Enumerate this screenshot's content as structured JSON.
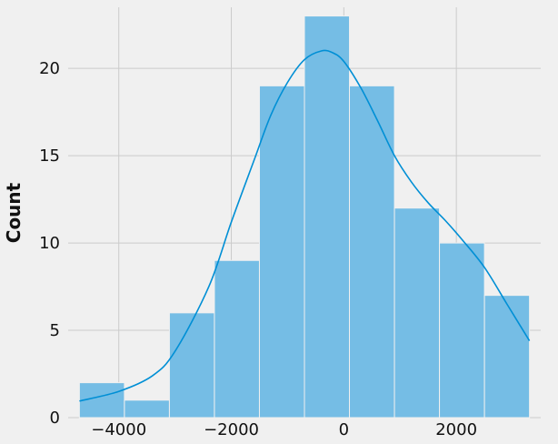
{
  "chart_data": {
    "type": "bar",
    "subtype": "histogram",
    "title": "",
    "xlabel": "",
    "ylabel": "Count",
    "xlim": [
      -4900,
      3500
    ],
    "ylim": [
      0,
      23.5
    ],
    "bins": [
      {
        "x0": -4700,
        "x1": -3900,
        "count": 2
      },
      {
        "x0": -3900,
        "x1": -3100,
        "count": 1
      },
      {
        "x0": -3100,
        "x1": -2300,
        "count": 6
      },
      {
        "x0": -2300,
        "x1": -1500,
        "count": 9
      },
      {
        "x0": -1500,
        "x1": -700,
        "count": 19
      },
      {
        "x0": -700,
        "x1": 100,
        "count": 23
      },
      {
        "x0": 100,
        "x1": 900,
        "count": 19
      },
      {
        "x0": 900,
        "x1": 1700,
        "count": 12
      },
      {
        "x0": 1700,
        "x1": 2500,
        "count": 10
      },
      {
        "x0": 2500,
        "x1": 3300,
        "count": 7
      }
    ],
    "kde": [
      {
        "x": -4700,
        "y": 0.95
      },
      {
        "x": -4000,
        "y": 1.5
      },
      {
        "x": -3400,
        "y": 2.4
      },
      {
        "x": -3000,
        "y": 3.8
      },
      {
        "x": -2400,
        "y": 7.5
      },
      {
        "x": -2000,
        "y": 11.2
      },
      {
        "x": -1600,
        "y": 14.7
      },
      {
        "x": -1300,
        "y": 17.3
      },
      {
        "x": -1000,
        "y": 19.2
      },
      {
        "x": -700,
        "y": 20.5
      },
      {
        "x": -400,
        "y": 21.0
      },
      {
        "x": -200,
        "y": 20.9
      },
      {
        "x": 0,
        "y": 20.4
      },
      {
        "x": 300,
        "y": 18.9
      },
      {
        "x": 600,
        "y": 17.0
      },
      {
        "x": 900,
        "y": 15.0
      },
      {
        "x": 1200,
        "y": 13.5
      },
      {
        "x": 1500,
        "y": 12.3
      },
      {
        "x": 1800,
        "y": 11.3
      },
      {
        "x": 2100,
        "y": 10.2
      },
      {
        "x": 2500,
        "y": 8.6
      },
      {
        "x": 2900,
        "y": 6.5
      },
      {
        "x": 3300,
        "y": 4.4
      }
    ],
    "xticks": [
      -4000,
      -2000,
      0,
      2000
    ],
    "xtick_labels": [
      "−4000",
      "−2000",
      "0",
      "2000"
    ],
    "yticks": [
      0,
      5,
      10,
      15,
      20
    ],
    "ytick_labels": [
      "0",
      "5",
      "10",
      "15",
      "20"
    ],
    "grid": true,
    "colors": {
      "background": "#f0f0f0",
      "grid": "#cbcbcb",
      "bar_fill": "#75bde5",
      "bar_edge": "#f0f0f0",
      "kde_line": "#008fd5"
    }
  }
}
